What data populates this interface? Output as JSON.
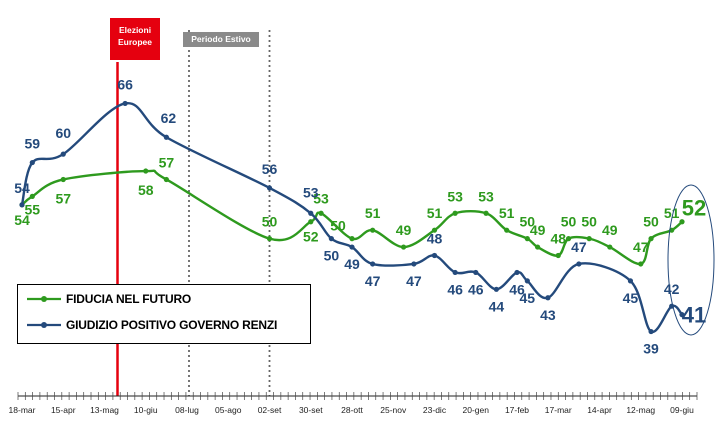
{
  "chart_data": {
    "type": "line",
    "x_ticks": [
      "18-mar",
      "15-apr",
      "13-mag",
      "10-giu",
      "08-lug",
      "05-ago",
      "02-set",
      "30-set",
      "28-ott",
      "25-nov",
      "23-dic",
      "20-gen",
      "17-feb",
      "17-mar",
      "14-apr",
      "12-mag",
      "09-giu"
    ],
    "annotations": {
      "elezioni": "Elezioni Europee",
      "estivo": "Periodo Estivo"
    },
    "series": [
      {
        "name": "FIDUCIA NEL FUTURO",
        "color": "#2e9a1e",
        "labeled": [
          {
            "x": "18-mar",
            "y": 54
          },
          {
            "x": "25-mar",
            "y": 55
          },
          {
            "x": "15-apr",
            "y": 57
          },
          {
            "x": "10-giu",
            "y": 58
          },
          {
            "x": "24-giu",
            "y": 57
          },
          {
            "x": "02-set",
            "y": 50
          },
          {
            "x": "30-set",
            "y": 52
          },
          {
            "x": "07-ott",
            "y": 53
          },
          {
            "x": "28-ott",
            "y": 50
          },
          {
            "x": "11-nov",
            "y": 51
          },
          {
            "x": "02-dic",
            "y": 49
          },
          {
            "x": "23-dic",
            "y": 51
          },
          {
            "x": "06-gen",
            "y": 53
          },
          {
            "x": "27-gen",
            "y": 53
          },
          {
            "x": "10-feb",
            "y": 51
          },
          {
            "x": "24-feb",
            "y": 50
          },
          {
            "x": "03-mar",
            "y": 49
          },
          {
            "x": "17-mar",
            "y": 48
          },
          {
            "x": "24-mar",
            "y": 50
          },
          {
            "x": "07-apr",
            "y": 50
          },
          {
            "x": "21-apr",
            "y": 49
          },
          {
            "x": "12-mag",
            "y": 47
          },
          {
            "x": "19-mag",
            "y": 50
          },
          {
            "x": "02-giu",
            "y": 51
          },
          {
            "x": "09-giu",
            "y": 52
          }
        ]
      },
      {
        "name": "GIUDIZIO POSITIVO GOVERNO RENZI",
        "color": "#244a7c",
        "labeled": [
          {
            "x": "18-mar",
            "y": 54
          },
          {
            "x": "25-mar",
            "y": 59
          },
          {
            "x": "15-apr",
            "y": 60
          },
          {
            "x": "27-mag",
            "y": 66
          },
          {
            "x": "24-giu",
            "y": 62
          },
          {
            "x": "02-set",
            "y": 56
          },
          {
            "x": "30-set",
            "y": 53
          },
          {
            "x": "14-ott",
            "y": 50
          },
          {
            "x": "28-ott",
            "y": 49
          },
          {
            "x": "11-nov",
            "y": 47
          },
          {
            "x": "09-dic",
            "y": 47
          },
          {
            "x": "23-dic",
            "y": 48
          },
          {
            "x": "06-gen",
            "y": 46
          },
          {
            "x": "20-gen",
            "y": 46
          },
          {
            "x": "03-feb",
            "y": 44
          },
          {
            "x": "17-feb",
            "y": 46
          },
          {
            "x": "24-feb",
            "y": 45
          },
          {
            "x": "10-mar",
            "y": 43
          },
          {
            "x": "31-mar",
            "y": 47
          },
          {
            "x": "05-mag",
            "y": 45
          },
          {
            "x": "19-mag",
            "y": 39
          },
          {
            "x": "02-giu",
            "y": 42
          },
          {
            "x": "09-giu",
            "y": 41
          }
        ]
      }
    ]
  }
}
